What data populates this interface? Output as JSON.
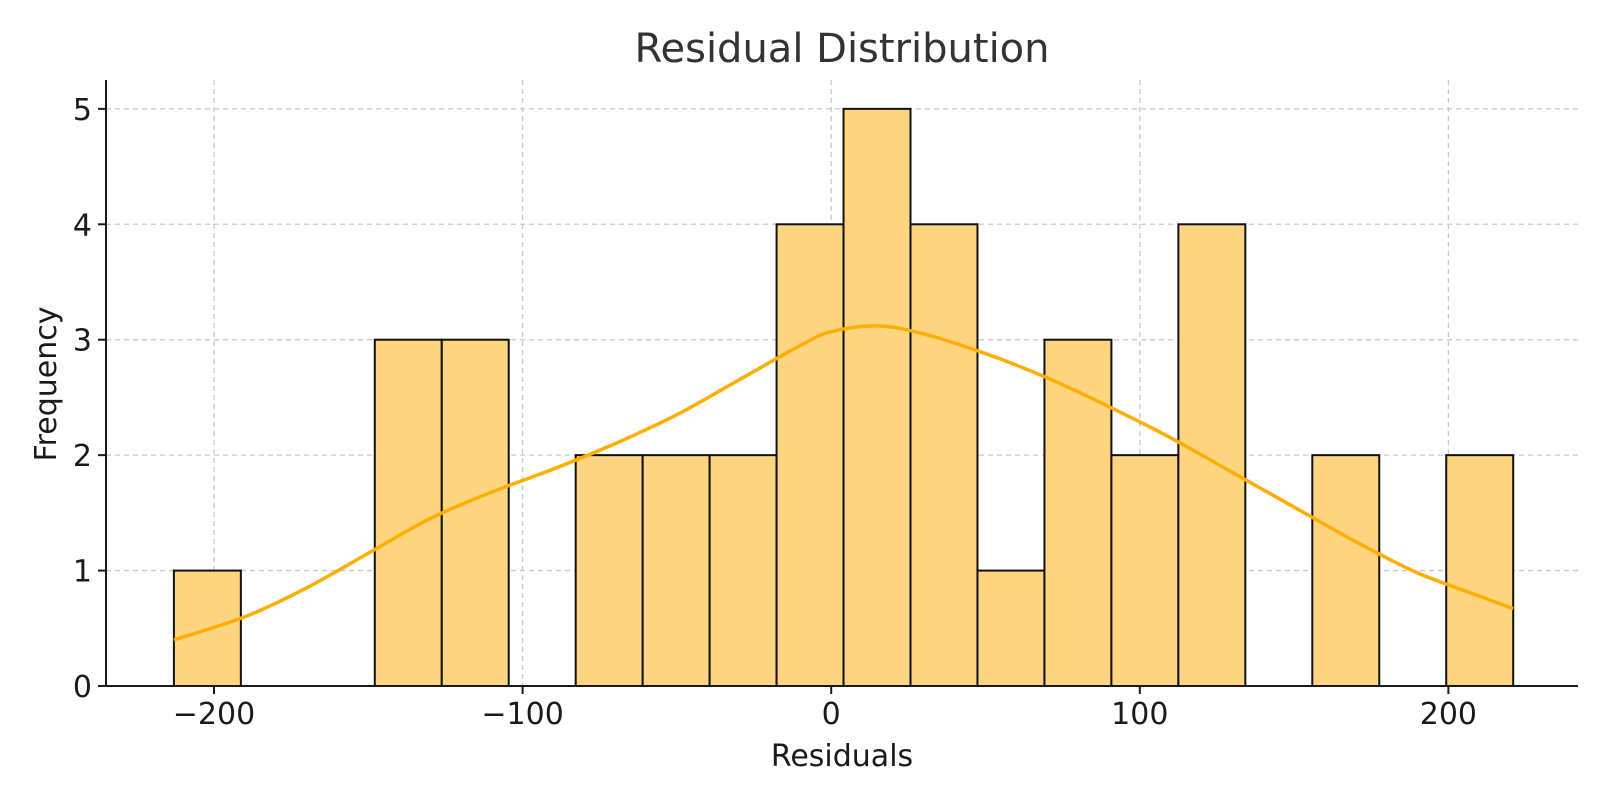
{
  "chart_data": {
    "type": "bar",
    "title": "Residual Distribution",
    "xlabel": "Residuals",
    "ylabel": "Frequency",
    "xlim": [
      -235,
      242
    ],
    "ylim": [
      0,
      5.25
    ],
    "x_ticks": [
      -200,
      -100,
      0,
      100,
      200
    ],
    "x_tick_labels": [
      "−200",
      "−100",
      "0",
      "100",
      "200"
    ],
    "y_ticks": [
      0,
      1,
      2,
      3,
      4,
      5
    ],
    "y_tick_labels": [
      "0",
      "1",
      "2",
      "3",
      "4",
      "5"
    ],
    "grid": true,
    "bins": {
      "edges": [
        -213,
        -191.3,
        -169.6,
        -147.9,
        -126.2,
        -104.5,
        -82.8,
        -61.1,
        -39.4,
        -17.7,
        4,
        25.7,
        47.4,
        69.1,
        90.8,
        112.5,
        134.2,
        155.9,
        177.6,
        199.3,
        221
      ],
      "counts": [
        1,
        0,
        0,
        3,
        3,
        0,
        2,
        2,
        2,
        4,
        5,
        4,
        1,
        3,
        2,
        4,
        0,
        2,
        0,
        2
      ]
    },
    "kde": {
      "x": [
        -213,
        -190,
        -170,
        -150,
        -130,
        -110,
        -90,
        -70,
        -50,
        -30,
        -10,
        0,
        15,
        30,
        50,
        70,
        90,
        110,
        130,
        150,
        170,
        190,
        210,
        221
      ],
      "y": [
        0.4,
        0.6,
        0.85,
        1.15,
        1.45,
        1.68,
        1.88,
        2.1,
        2.35,
        2.65,
        2.95,
        3.07,
        3.12,
        3.05,
        2.88,
        2.67,
        2.42,
        2.15,
        1.85,
        1.55,
        1.25,
        0.98,
        0.78,
        0.67
      ]
    },
    "colors": {
      "bar_fill": "#fdd580",
      "bar_edge": "#111111",
      "kde_line": "#ffae00"
    }
  }
}
